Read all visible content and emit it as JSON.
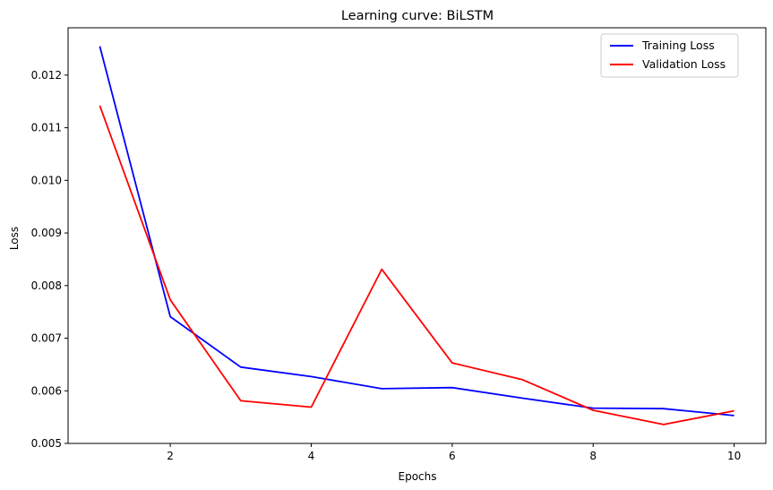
{
  "chart_data": {
    "type": "line",
    "title": "Learning curve: BiLSTM",
    "xlabel": "Epochs",
    "ylabel": "Loss",
    "xlim": [
      0.55,
      10.45
    ],
    "ylim": [
      0.005,
      0.0129
    ],
    "xticks": [
      2,
      4,
      6,
      8,
      10
    ],
    "yticks": [
      0.005,
      0.006,
      0.007,
      0.008,
      0.009,
      0.01,
      0.011,
      0.012
    ],
    "x": [
      1,
      2,
      3,
      4,
      5,
      6,
      7,
      8,
      9,
      10
    ],
    "grid": false,
    "legend_position": "top-right",
    "series": [
      {
        "name": "Training Loss",
        "color": "#0000ff",
        "values": [
          0.01255,
          0.00741,
          0.00645,
          0.00627,
          0.00604,
          0.00606,
          0.00586,
          0.00567,
          0.00566,
          0.00553
        ]
      },
      {
        "name": "Validation Loss",
        "color": "#ff0000",
        "values": [
          0.01142,
          0.00773,
          0.00581,
          0.00569,
          0.00831,
          0.00653,
          0.00621,
          0.00563,
          0.00536,
          0.00562
        ]
      }
    ]
  }
}
